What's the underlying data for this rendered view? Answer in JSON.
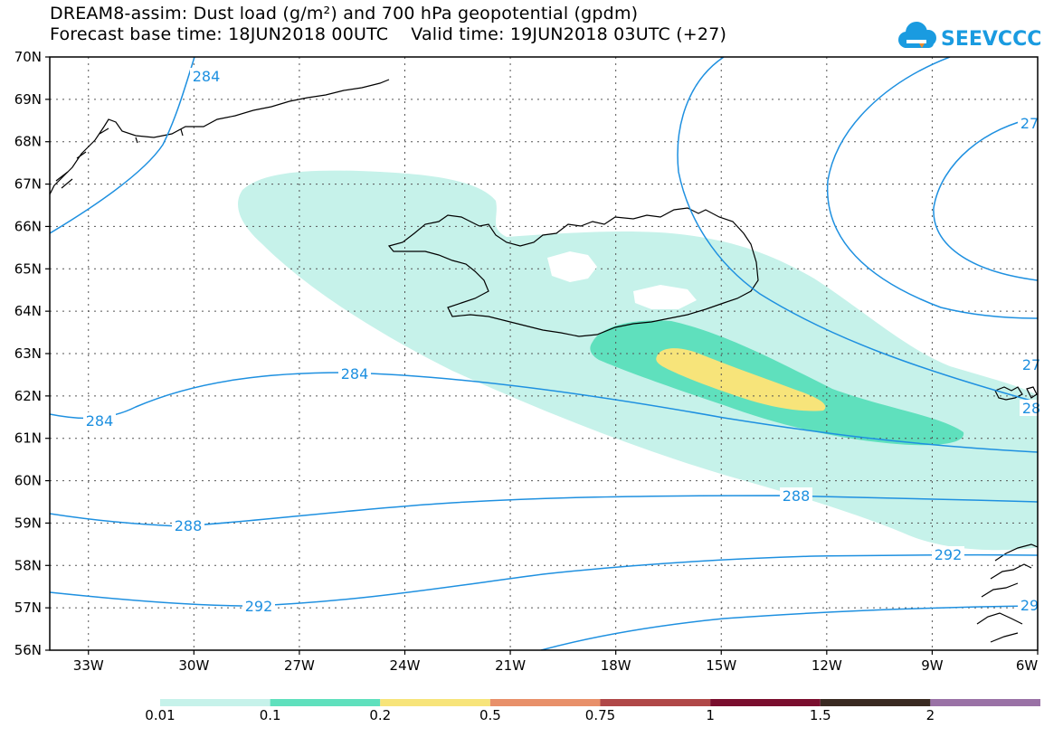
{
  "header": {
    "title_line1": "DREAM8-assim: Dust load (g/m²) and 700 hPa geopotential (gpdm)",
    "title_line2": "Forecast base time: 18JUN2018 00UTC    Valid time: 19JUN2018 03UTC (+27)"
  },
  "logo": {
    "text": "SEEVCCC",
    "icon": "cloud-icon",
    "color": "#1a9be0"
  },
  "map": {
    "lat_ticks": [
      "70N",
      "69N",
      "68N",
      "67N",
      "66N",
      "65N",
      "64N",
      "63N",
      "62N",
      "61N",
      "60N",
      "59N",
      "58N",
      "57N",
      "56N"
    ],
    "lon_ticks": [
      "33W",
      "30W",
      "27W",
      "24W",
      "21W",
      "18W",
      "15W",
      "12W",
      "9W",
      "6W"
    ],
    "contour_color": "#1e90e0",
    "contour_labels": [
      {
        "text": "284",
        "id": "c284-a"
      },
      {
        "text": "284",
        "id": "c284-b"
      },
      {
        "text": "284",
        "id": "c284-c"
      },
      {
        "text": "288",
        "id": "c288-a"
      },
      {
        "text": "288",
        "id": "c288-b"
      },
      {
        "text": "292",
        "id": "c292-a"
      },
      {
        "text": "292",
        "id": "c292-b"
      },
      {
        "text": "27",
        "id": "c27-a"
      },
      {
        "text": "27",
        "id": "c27-b"
      },
      {
        "text": "28",
        "id": "c28-a"
      },
      {
        "text": "29",
        "id": "c29-a"
      }
    ]
  },
  "colorbar": {
    "labels": [
      "0.01",
      "0.1",
      "0.2",
      "0.5",
      "0.75",
      "1",
      "1.5",
      "2"
    ],
    "colors": [
      "#c6f2ea",
      "#5fe0bd",
      "#f7e47a",
      "#e8906a",
      "#b04848",
      "#7a0e2e",
      "#3a2a22",
      "#9a72a6"
    ]
  }
}
